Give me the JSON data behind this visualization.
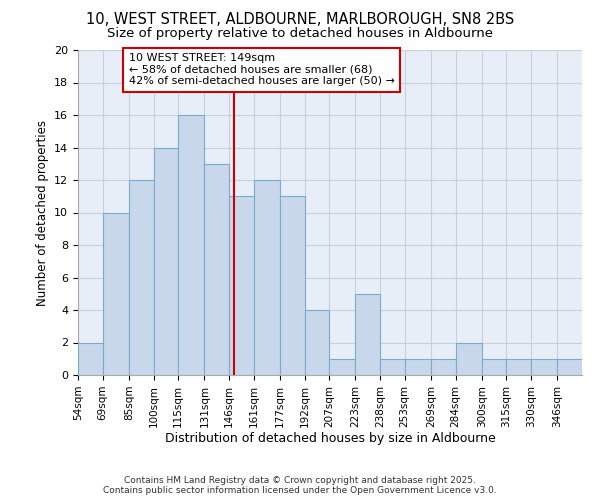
{
  "title1": "10, WEST STREET, ALDBOURNE, MARLBOROUGH, SN8 2BS",
  "title2": "Size of property relative to detached houses in Aldbourne",
  "xlabel": "Distribution of detached houses by size in Aldbourne",
  "ylabel": "Number of detached properties",
  "bin_edges": [
    54,
    69,
    85,
    100,
    115,
    131,
    146,
    161,
    177,
    192,
    207,
    223,
    238,
    253,
    269,
    284,
    300,
    315,
    330,
    346,
    361
  ],
  "bar_heights": [
    2,
    10,
    12,
    14,
    16,
    13,
    11,
    12,
    11,
    4,
    1,
    5,
    1,
    1,
    1,
    2,
    1,
    1,
    1,
    1
  ],
  "bar_color": "#c8d8ea",
  "bar_edge_color": "#7aabcc",
  "property_size": 149,
  "vline_color": "#cc0000",
  "annotation_line1": "10 WEST STREET: 149sqm",
  "annotation_line2": "← 58% of detached houses are smaller (68)",
  "annotation_line3": "42% of semi-detached houses are larger (50) →",
  "annotation_box_color": "#ffffff",
  "annotation_border_color": "#cc0000",
  "ylim": [
    0,
    20
  ],
  "yticks": [
    0,
    2,
    4,
    6,
    8,
    10,
    12,
    14,
    16,
    18,
    20
  ],
  "grid_color": "#c8d0dc",
  "bg_color": "#e8eef8",
  "footnote": "Contains HM Land Registry data © Crown copyright and database right 2025.\nContains public sector information licensed under the Open Government Licence v3.0.",
  "title_fontsize": 10.5,
  "subtitle_fontsize": 9.5,
  "tick_label_fontsize": 7.5,
  "ylabel_fontsize": 8.5,
  "xlabel_fontsize": 9,
  "annotation_fontsize": 8,
  "footnote_fontsize": 6.5
}
